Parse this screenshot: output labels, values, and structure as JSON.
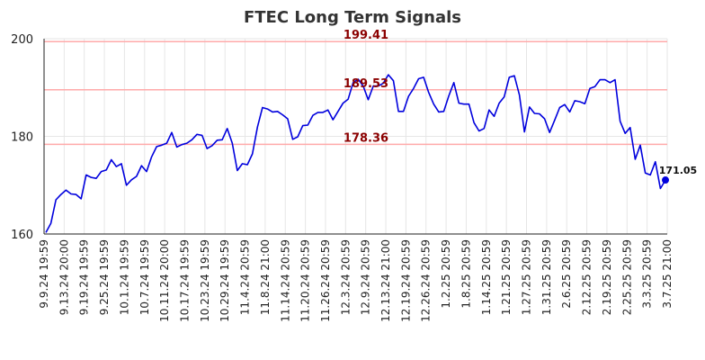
{
  "chart_data": {
    "type": "line",
    "title": "FTEC Long Term Signals",
    "xlabel": "",
    "ylabel": "",
    "ylim": [
      160,
      200
    ],
    "y_ticks": [
      160,
      180,
      200
    ],
    "grid": true,
    "x_tick_labels": [
      "9.9.24 19:59",
      "9.13.24 20:00",
      "9.19.24 19:59",
      "9.25.24 19:59",
      "10.1.24 19:59",
      "10.7.24 19:59",
      "10.11.24 20:00",
      "10.17.24 19:59",
      "10.23.24 19:59",
      "10.29.24 19:59",
      "11.4.24 20:59",
      "11.8.24 21:00",
      "11.14.24 20:59",
      "11.20.24 20:59",
      "11.26.24 20:59",
      "12.3.24 20:59",
      "12.9.24 20:59",
      "12.13.24 21:00",
      "12.19.24 20:59",
      "12.26.24 20:59",
      "1.2.25 20:59",
      "1.8.25 20:59",
      "1.14.25 20:59",
      "1.21.25 20:59",
      "1.27.25 20:59",
      "1.31.25 20:59",
      "2.6.25 20:59",
      "2.12.25 20:59",
      "2.19.25 20:59",
      "2.25.25 20:59",
      "3.3.25 20:59",
      "3.7.25 21:00"
    ],
    "series": [
      {
        "values": [
          160.3,
          162.2,
          167.0,
          168.1,
          169.0,
          168.2,
          168.1,
          167.2,
          172.1,
          171.6,
          171.4,
          172.8,
          173.1,
          175.2,
          173.8,
          174.4,
          170.0,
          171.1,
          171.8,
          174.0,
          172.8,
          175.8,
          177.9,
          178.2,
          178.6,
          180.8,
          177.8,
          178.3,
          178.6,
          179.3,
          180.4,
          180.2,
          177.5,
          178.1,
          179.2,
          179.3,
          181.6,
          178.6,
          173.0,
          174.4,
          174.2,
          176.4,
          181.9,
          185.9,
          185.6,
          185.0,
          185.1,
          184.4,
          183.6,
          179.4,
          179.9,
          182.2,
          182.3,
          184.3,
          184.9,
          184.9,
          185.4,
          183.4,
          185.1,
          186.8,
          187.6,
          191.0,
          191.7,
          190.3,
          187.5,
          190.3,
          190.3,
          190.9,
          192.6,
          191.4,
          185.1,
          185.1,
          188.2,
          189.8,
          191.8,
          192.1,
          189.0,
          186.6,
          185.0,
          185.1,
          188.3,
          191.0,
          186.8,
          186.6,
          186.6,
          182.8,
          181.1,
          181.6,
          185.4,
          184.1,
          186.8,
          188.1,
          192.1,
          192.4,
          188.5,
          180.9,
          186.0,
          184.7,
          184.6,
          183.6,
          180.8,
          183.3,
          185.9,
          186.5,
          185.0,
          187.3,
          187.1,
          186.7,
          189.8,
          190.2,
          191.6,
          191.6,
          191.0,
          191.6,
          183.1,
          180.6,
          181.8,
          175.3,
          178.2,
          172.5,
          172.1,
          174.8,
          169.3,
          171.05
        ]
      }
    ],
    "levels": [
      {
        "value": 199.41,
        "label": "199.41"
      },
      {
        "value": 189.53,
        "label": "189.53"
      },
      {
        "value": 178.36,
        "label": "178.36"
      }
    ],
    "last_value_label": "171.05",
    "colors": {
      "line": "#0000dd",
      "level_line": "#ffaaaa",
      "level_text": "#8b0000",
      "grid": "#e6e6e6",
      "marker": "#0000dd"
    }
  }
}
